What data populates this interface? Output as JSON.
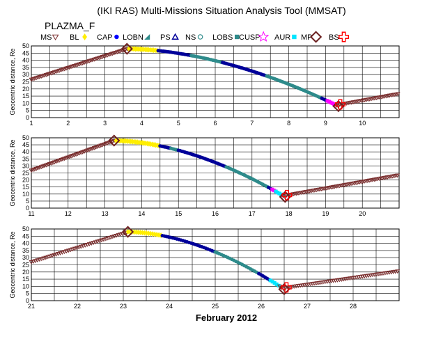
{
  "title": "(IKI RAS) Multi-Missions Situation Analysis Tool (MMSAT)",
  "subtitle": "PLAZMA_F",
  "xlabel": "February 2012",
  "colors": {
    "MS": "#7b2f2f",
    "BL": "#ffee00",
    "CAP": "#0000ff",
    "LOBN": "#2e8b8b",
    "PS": "#000099",
    "NS": "#2e8b8b",
    "LOBS": "#2e8b8b",
    "CUSP": "#ff00ff",
    "AUR": "#00e5ff",
    "MP": "#6b1f1f",
    "BS": "#ff0000",
    "grid": "#000000"
  },
  "legend": [
    {
      "label": "MS",
      "marker": "down-triangle",
      "color_key": "MS"
    },
    {
      "label": "BL",
      "marker": "diamond-small",
      "color_key": "BL"
    },
    {
      "label": "CAP",
      "marker": "circle-filled",
      "color_key": "CAP"
    },
    {
      "label": "LOBN",
      "marker": "triangle-filled",
      "color_key": "LOBN"
    },
    {
      "label": "PS",
      "marker": "triangle-open",
      "color_key": "PS"
    },
    {
      "label": "NS",
      "marker": "circle-open",
      "color_key": "NS"
    },
    {
      "label": "LOBS",
      "marker": "square-filled",
      "color_key": "LOBS"
    },
    {
      "label": "CUSP",
      "marker": "star-open",
      "color_key": "CUSP"
    },
    {
      "label": "AUR",
      "marker": "square-filled",
      "color_key": "AUR"
    },
    {
      "label": "MP",
      "marker": "diamond-open",
      "color_key": "MP"
    },
    {
      "label": "BS",
      "marker": "cross-open",
      "color_key": "BS"
    }
  ],
  "chart_data": [
    {
      "type": "scatter",
      "xlim": [
        1,
        11
      ],
      "ylim": [
        0,
        50
      ],
      "ylabel": "Geocentric distance, Re",
      "xticks": [
        1,
        2,
        3,
        4,
        5,
        6,
        7,
        8,
        9,
        10
      ],
      "yticks": [
        0,
        5,
        10,
        15,
        20,
        25,
        30,
        35,
        40,
        45,
        50
      ],
      "grid": true,
      "segments": [
        {
          "region": "MS",
          "x0": 1.0,
          "x1": 3.65
        },
        {
          "region": "BL",
          "x0": 3.65,
          "x1": 4.45
        },
        {
          "region": "PS",
          "x0": 4.45,
          "x1": 5.35
        },
        {
          "region": "LOBN",
          "x0": 5.35,
          "x1": 6.2
        },
        {
          "region": "PS",
          "x0": 6.2,
          "x1": 7.4
        },
        {
          "region": "LOBN",
          "x0": 7.4,
          "x1": 8.9
        },
        {
          "region": "PS",
          "x0": 8.9,
          "x1": 9.05
        },
        {
          "region": "CUSP",
          "x0": 9.05,
          "x1": 9.3
        },
        {
          "region": "MS",
          "x0": 9.3,
          "x1": 11.0
        }
      ],
      "crossings": [
        {
          "x": 3.6,
          "type": "MP"
        },
        {
          "x": 9.35,
          "type": "MP"
        },
        {
          "x": 9.4,
          "type": "BS"
        }
      ]
    },
    {
      "type": "scatter",
      "xlim": [
        11,
        21
      ],
      "ylim": [
        0,
        50
      ],
      "ylabel": "Geocentric distance, Re",
      "xticks": [
        11,
        12,
        13,
        14,
        15,
        16,
        17,
        18,
        19,
        20
      ],
      "yticks": [
        0,
        5,
        10,
        15,
        20,
        25,
        30,
        35,
        40,
        45,
        50
      ],
      "grid": true,
      "segments": [
        {
          "region": "MS",
          "x0": 11.0,
          "x1": 13.3
        },
        {
          "region": "BL",
          "x0": 13.3,
          "x1": 14.5
        },
        {
          "region": "PS",
          "x0": 14.5,
          "x1": 14.8
        },
        {
          "region": "LOBN",
          "x0": 14.8,
          "x1": 15.0
        },
        {
          "region": "PS",
          "x0": 15.0,
          "x1": 16.3
        },
        {
          "region": "LOBN",
          "x0": 16.3,
          "x1": 17.45
        },
        {
          "region": "PS",
          "x0": 17.45,
          "x1": 17.55
        },
        {
          "region": "CUSP",
          "x0": 17.55,
          "x1": 17.65
        },
        {
          "region": "AUR",
          "x0": 17.65,
          "x1": 17.85
        },
        {
          "region": "MS",
          "x0": 17.85,
          "x1": 21.0
        }
      ],
      "crossings": [
        {
          "x": 13.25,
          "type": "MP"
        },
        {
          "x": 17.9,
          "type": "MP"
        },
        {
          "x": 17.95,
          "type": "BS"
        }
      ]
    },
    {
      "type": "scatter",
      "xlim": [
        21,
        29
      ],
      "ylim": [
        0,
        50
      ],
      "ylabel": "Geocentric distance, Re",
      "xticks": [
        21,
        22,
        23,
        24,
        25,
        26,
        27,
        28
      ],
      "yticks": [
        0,
        5,
        10,
        15,
        20,
        25,
        30,
        35,
        40,
        45,
        50
      ],
      "grid": true,
      "segments": [
        {
          "region": "MS",
          "x0": 21.0,
          "x1": 23.1
        },
        {
          "region": "BL",
          "x0": 23.1,
          "x1": 23.85
        },
        {
          "region": "PS",
          "x0": 23.85,
          "x1": 25.0
        },
        {
          "region": "LOBN",
          "x0": 25.0,
          "x1": 25.95
        },
        {
          "region": "PS",
          "x0": 25.95,
          "x1": 26.2
        },
        {
          "region": "AUR",
          "x0": 26.2,
          "x1": 26.4
        },
        {
          "region": "MS",
          "x0": 26.4,
          "x1": 29.0
        }
      ],
      "crossings": [
        {
          "x": 23.1,
          "type": "MP"
        },
        {
          "x": 26.5,
          "type": "MP"
        },
        {
          "x": 26.55,
          "type": "BS"
        }
      ]
    }
  ]
}
